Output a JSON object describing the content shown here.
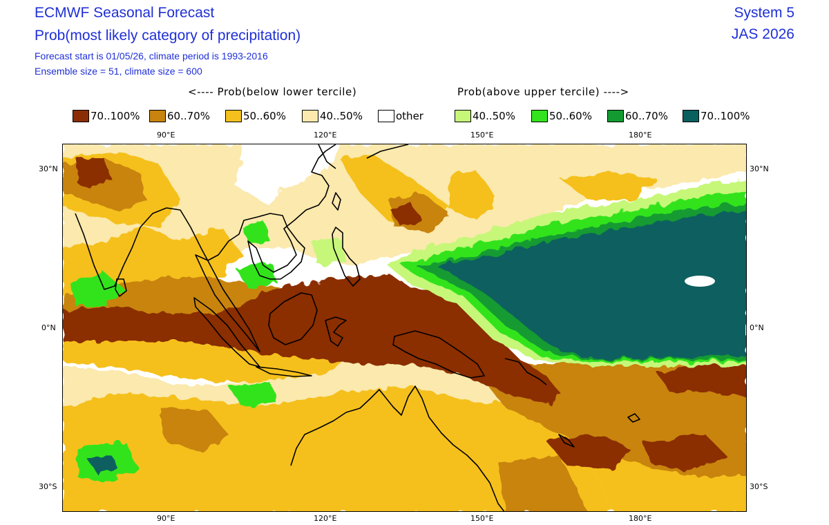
{
  "header": {
    "title": "ECMWF Seasonal Forecast",
    "subtitle": "Prob(most likely category of precipitation)",
    "forecast_info": "Forecast start is 01/05/26, climate period is 1993-2016",
    "ensemble_info": "Ensemble size = 51, climate size = 600",
    "system": "System 5",
    "period": "JAS 2026"
  },
  "legend": {
    "below_title": "<---- Prob(below lower tercile)",
    "above_title": "Prob(above upper tercile) ---->",
    "items": [
      {
        "label": "70..100%",
        "color": "#8b2e06"
      },
      {
        "label": "60..70%",
        "color": "#c8840f"
      },
      {
        "label": "50..60%",
        "color": "#f5c01e"
      },
      {
        "label": "40..50%",
        "color": "#fbe9ad"
      },
      {
        "label": "other",
        "color": "#ffffff"
      },
      {
        "label": "40..50%",
        "color": "#c6f779"
      },
      {
        "label": "50..60%",
        "color": "#33e31d"
      },
      {
        "label": "60..70%",
        "color": "#139b32"
      },
      {
        "label": "70..100%",
        "color": "#09605e"
      }
    ]
  },
  "map": {
    "lon_ticks": [
      "90°E",
      "120°E",
      "150°E",
      "180°E"
    ],
    "lat_ticks": [
      "30°N",
      "0°N",
      "30°S"
    ]
  }
}
